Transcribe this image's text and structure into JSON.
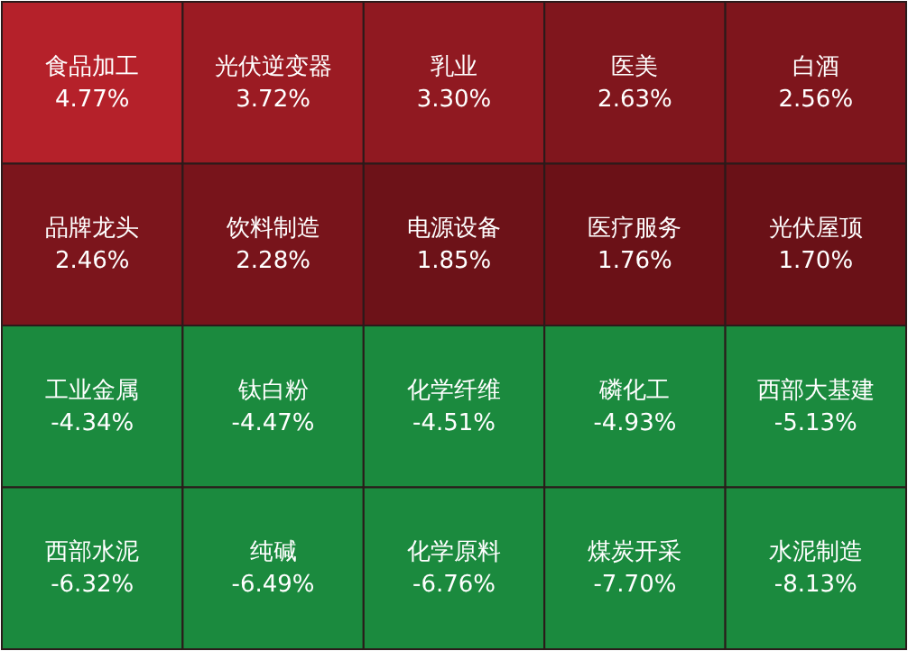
{
  "chart_data": {
    "type": "heatmap",
    "categories": [
      null,
      null,
      null,
      null,
      null
    ],
    "y_categories": [
      null,
      null,
      null,
      null
    ],
    "tick_labels": false,
    "cells": [
      [
        4.77,
        3.72,
        3.3,
        2.63,
        2.56
      ],
      [
        2.46,
        2.28,
        1.85,
        1.76,
        1.7
      ],
      [
        -4.34,
        -4.47,
        -4.51,
        -4.93,
        -5.13
      ],
      [
        -6.32,
        -6.49,
        -6.76,
        -7.7,
        -8.13
      ]
    ],
    "cell_labels": [
      [
        "4.77%",
        "3.72%",
        "3.30%",
        "2.63%",
        "2.56%"
      ],
      [
        "2.46%",
        "2.28%",
        "1.85%",
        "1.76%",
        "1.70%"
      ],
      [
        "-4.34%",
        "-4.47%",
        "-4.51%",
        "-4.93%",
        "-5.13%"
      ],
      [
        "-6.32%",
        "-6.49%",
        "-6.76%",
        "-7.70%",
        "-8.13%"
      ]
    ],
    "annotations": [
      "食品加工",
      "光伏逆变器",
      "乳业",
      "医美",
      "白酒",
      "品牌龙头",
      "饮料制造",
      "电源设备",
      "医疗服务",
      "光伏屋顶",
      "工业金属",
      "钛白粉",
      "化学纤维",
      "磷化工",
      "西部大基建",
      "西部水泥",
      "纯碱",
      "化学原料",
      "煤炭开采",
      "水泥制造"
    ]
  }
}
